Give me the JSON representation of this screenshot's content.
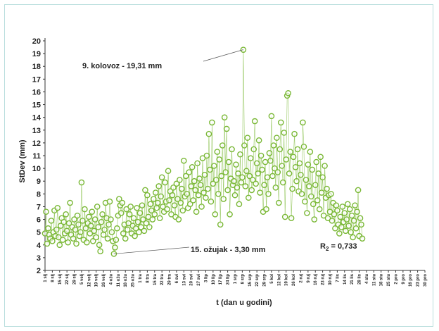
{
  "chart_data": {
    "type": "scatter",
    "title": "",
    "ylabel": "StDev (mm)",
    "xlabel": "t (dan u godini)",
    "ylim": [
      2,
      20
    ],
    "yticks": [
      2,
      3,
      4,
      5,
      6,
      7,
      8,
      9,
      10,
      11,
      12,
      13,
      14,
      15,
      16,
      17,
      18,
      19,
      20
    ],
    "xlim": [
      1,
      365
    ],
    "xtick_labels": [
      "1 sij",
      "8 sij",
      "15 sij",
      "22 sij",
      "29 sij",
      "5 velj",
      "12 velj",
      "19 velj",
      "26 velj",
      "4 ožu",
      "11 ožu",
      "18 ožu",
      "25 ožu",
      "1 tra",
      "8 tra",
      "15 tra",
      "22 tra",
      "29 tra",
      "6 svi",
      "13 svi",
      "20 svi",
      "27 svi",
      "3 lip",
      "10 lip",
      "17 lip",
      "24 lip",
      "1 srp",
      "8 srp",
      "15 srp",
      "22 srp",
      "29 srp",
      "5 kol",
      "12 kol",
      "19 kol",
      "26 kol",
      "2 ruj",
      "9 ruj",
      "16 ruj",
      "23 ruj",
      "30 ruj",
      "7 lis",
      "14 lis",
      "21 lis",
      "28 lis",
      "4 stu",
      "11 stu",
      "18 stu",
      "25 stu",
      "2 pro",
      "9 pro",
      "16 pro",
      "23 pro",
      "30 pro"
    ],
    "series": [
      {
        "marker_color": "#7ab836",
        "points": [
          [
            1,
            4.9
          ],
          [
            2,
            6.6
          ],
          [
            3,
            4.1
          ],
          [
            4,
            5.3
          ],
          [
            5,
            4.8
          ],
          [
            6,
            4.5
          ],
          [
            7,
            5.9
          ],
          [
            8,
            4.3
          ],
          [
            9,
            5.0
          ],
          [
            10,
            6.7
          ],
          [
            11,
            4.7
          ],
          [
            12,
            5.2
          ],
          [
            13,
            6.9
          ],
          [
            14,
            4.6
          ],
          [
            15,
            4.0
          ],
          [
            16,
            5.5
          ],
          [
            17,
            6.1
          ],
          [
            18,
            4.4
          ],
          [
            19,
            5.8
          ],
          [
            20,
            4.9
          ],
          [
            21,
            6.4
          ],
          [
            22,
            5.1
          ],
          [
            23,
            4.2
          ],
          [
            24,
            5.7
          ],
          [
            25,
            7.3
          ],
          [
            26,
            4.8
          ],
          [
            27,
            5.4
          ],
          [
            28,
            4.5
          ],
          [
            29,
            6.0
          ],
          [
            30,
            5.2
          ],
          [
            31,
            4.1
          ],
          [
            32,
            6.3
          ],
          [
            33,
            5.6
          ],
          [
            34,
            4.7
          ],
          [
            35,
            5.0
          ],
          [
            36,
            8.9
          ],
          [
            37,
            5.9
          ],
          [
            38,
            4.4
          ],
          [
            39,
            6.8
          ],
          [
            40,
            5.3
          ],
          [
            41,
            4.2
          ],
          [
            42,
            5.7
          ],
          [
            43,
            6.2
          ],
          [
            44,
            4.9
          ],
          [
            45,
            5.5
          ],
          [
            46,
            6.6
          ],
          [
            47,
            4.3
          ],
          [
            48,
            5.1
          ],
          [
            49,
            6.0
          ],
          [
            50,
            4.6
          ],
          [
            51,
            7.0
          ],
          [
            52,
            5.4
          ],
          [
            53,
            4.0
          ],
          [
            54,
            3.5
          ],
          [
            55,
            5.8
          ],
          [
            56,
            6.4
          ],
          [
            57,
            4.8
          ],
          [
            58,
            5.2
          ],
          [
            59,
            7.3
          ],
          [
            60,
            6.1
          ],
          [
            61,
            4.5
          ],
          [
            62,
            5.6
          ],
          [
            63,
            7.4
          ],
          [
            64,
            6.0
          ],
          [
            65,
            5.0
          ],
          [
            66,
            4.3
          ],
          [
            67,
            3.3
          ],
          [
            68,
            3.8
          ],
          [
            69,
            4.4
          ],
          [
            70,
            5.3
          ],
          [
            71,
            6.3
          ],
          [
            72,
            7.6
          ],
          [
            73,
            7.1
          ],
          [
            74,
            6.5
          ],
          [
            75,
            7.3
          ],
          [
            76,
            4.9
          ],
          [
            77,
            5.6
          ],
          [
            78,
            4.5
          ],
          [
            79,
            6.8
          ],
          [
            80,
            5.2
          ],
          [
            81,
            5.7
          ],
          [
            82,
            6.4
          ],
          [
            83,
            7.0
          ],
          [
            84,
            4.9
          ],
          [
            85,
            5.5
          ],
          [
            86,
            6.1
          ],
          [
            87,
            4.7
          ],
          [
            88,
            5.3
          ],
          [
            89,
            6.9
          ],
          [
            90,
            5.8
          ],
          [
            91,
            5.0
          ],
          [
            92,
            6.5
          ],
          [
            93,
            5.4
          ],
          [
            94,
            7.1
          ],
          [
            95,
            6.0
          ],
          [
            96,
            5.1
          ],
          [
            97,
            8.3
          ],
          [
            98,
            5.7
          ],
          [
            99,
            7.9
          ],
          [
            100,
            6.2
          ],
          [
            101,
            5.4
          ],
          [
            102,
            7.2
          ],
          [
            103,
            6.7
          ],
          [
            104,
            6.0
          ],
          [
            105,
            7.6
          ],
          [
            106,
            6.4
          ],
          [
            107,
            8.1
          ],
          [
            108,
            6.9
          ],
          [
            109,
            7.3
          ],
          [
            110,
            8.6
          ],
          [
            111,
            6.1
          ],
          [
            112,
            7.8
          ],
          [
            113,
            9.3
          ],
          [
            114,
            7.0
          ],
          [
            115,
            6.6
          ],
          [
            116,
            8.9
          ],
          [
            117,
            7.4
          ],
          [
            118,
            6.8
          ],
          [
            119,
            9.8
          ],
          [
            120,
            7.5
          ],
          [
            121,
            8.2
          ],
          [
            122,
            6.4
          ],
          [
            123,
            7.9
          ],
          [
            124,
            8.5
          ],
          [
            125,
            7.1
          ],
          [
            126,
            6.2
          ],
          [
            127,
            8.8
          ],
          [
            128,
            7.6
          ],
          [
            129,
            6.0
          ],
          [
            130,
            9.1
          ],
          [
            131,
            7.3
          ],
          [
            132,
            8.4
          ],
          [
            133,
            6.7
          ],
          [
            134,
            10.6
          ],
          [
            135,
            7.8
          ],
          [
            136,
            9.4
          ],
          [
            137,
            8.0
          ],
          [
            138,
            6.9
          ],
          [
            139,
            9.7
          ],
          [
            140,
            7.2
          ],
          [
            141,
            8.6
          ],
          [
            142,
            10.1
          ],
          [
            143,
            7.5
          ],
          [
            144,
            9.0
          ],
          [
            145,
            8.3
          ],
          [
            146,
            6.6
          ],
          [
            147,
            10.4
          ],
          [
            148,
            7.9
          ],
          [
            149,
            9.2
          ],
          [
            150,
            8.7
          ],
          [
            151,
            7.0
          ],
          [
            152,
            10.8
          ],
          [
            153,
            8.1
          ],
          [
            154,
            9.5
          ],
          [
            155,
            7.7
          ],
          [
            156,
            11.0
          ],
          [
            157,
            8.4
          ],
          [
            158,
            12.7
          ],
          [
            159,
            9.9
          ],
          [
            160,
            7.4
          ],
          [
            161,
            13.6
          ],
          [
            162,
            8.8
          ],
          [
            163,
            10.2
          ],
          [
            164,
            6.4
          ],
          [
            165,
            9.1
          ],
          [
            166,
            11.3
          ],
          [
            167,
            8.0
          ],
          [
            168,
            10.7
          ],
          [
            169,
            5.6
          ],
          [
            170,
            9.4
          ],
          [
            171,
            11.8
          ],
          [
            172,
            7.6
          ],
          [
            173,
            14.0
          ],
          [
            174,
            9.7
          ],
          [
            175,
            13.1
          ],
          [
            176,
            8.3
          ],
          [
            177,
            10.5
          ],
          [
            178,
            6.4
          ],
          [
            179,
            9.2
          ],
          [
            180,
            11.5
          ],
          [
            181,
            8.7
          ],
          [
            182,
            9.0
          ],
          [
            183,
            7.9
          ],
          [
            184,
            10.3
          ],
          [
            185,
            8.5
          ],
          [
            186,
            9.6
          ],
          [
            187,
            7.2
          ],
          [
            188,
            11.1
          ],
          [
            189,
            8.9
          ],
          [
            190,
            9.3
          ],
          [
            191,
            19.3
          ],
          [
            192,
            11.8
          ],
          [
            193,
            8.6
          ],
          [
            194,
            9.8
          ],
          [
            195,
            12.4
          ],
          [
            196,
            7.7
          ],
          [
            197,
            9.4
          ],
          [
            198,
            10.8
          ],
          [
            199,
            8.3
          ],
          [
            200,
            9.1
          ],
          [
            201,
            11.5
          ],
          [
            202,
            13.7
          ],
          [
            203,
            8.8
          ],
          [
            204,
            10.4
          ],
          [
            205,
            9.6
          ],
          [
            206,
            12.2
          ],
          [
            207,
            8.1
          ],
          [
            208,
            11.0
          ],
          [
            209,
            9.9
          ],
          [
            210,
            6.6
          ],
          [
            211,
            8.7
          ],
          [
            212,
            10.5
          ],
          [
            213,
            6.8
          ],
          [
            214,
            9.3
          ],
          [
            215,
            8.0
          ],
          [
            216,
            11.2
          ],
          [
            217,
            10.6
          ],
          [
            218,
            14.1
          ],
          [
            219,
            9.4
          ],
          [
            220,
            11.8
          ],
          [
            221,
            10.0
          ],
          [
            222,
            8.5
          ],
          [
            223,
            12.4
          ],
          [
            224,
            9.7
          ],
          [
            225,
            7.3
          ],
          [
            226,
            11.5
          ],
          [
            227,
            13.6
          ],
          [
            228,
            10.2
          ],
          [
            229,
            8.9
          ],
          [
            230,
            12.8
          ],
          [
            231,
            6.2
          ],
          [
            232,
            10.7
          ],
          [
            233,
            15.7
          ],
          [
            234,
            15.9
          ],
          [
            235,
            9.6
          ],
          [
            236,
            11.3
          ],
          [
            237,
            6.1
          ],
          [
            238,
            8.4
          ],
          [
            239,
            10.9
          ],
          [
            240,
            12.7
          ],
          [
            241,
            10.1
          ],
          [
            242,
            9.0
          ],
          [
            243,
            11.5
          ],
          [
            244,
            8.2
          ],
          [
            245,
            10.4
          ],
          [
            246,
            9.5
          ],
          [
            247,
            8.0
          ],
          [
            248,
            13.6
          ],
          [
            249,
            11.7
          ],
          [
            250,
            7.4
          ],
          [
            251,
            9.1
          ],
          [
            252,
            6.5
          ],
          [
            253,
            10.3
          ],
          [
            254,
            8.6
          ],
          [
            255,
            11.3
          ],
          [
            256,
            7.8
          ],
          [
            257,
            9.9
          ],
          [
            258,
            7.2
          ],
          [
            259,
            6.0
          ],
          [
            260,
            8.7
          ],
          [
            261,
            10.5
          ],
          [
            262,
            7.5
          ],
          [
            263,
            9.6
          ],
          [
            264,
            6.8
          ],
          [
            265,
            10.9
          ],
          [
            266,
            8.1
          ],
          [
            267,
            9.3
          ],
          [
            268,
            6.3
          ],
          [
            269,
            10.2
          ],
          [
            270,
            7.7
          ],
          [
            271,
            8.4
          ],
          [
            272,
            6.1
          ],
          [
            273,
            7.9
          ],
          [
            274,
            6.6
          ],
          [
            275,
            8.0
          ],
          [
            276,
            5.9
          ],
          [
            277,
            7.3
          ],
          [
            278,
            6.4
          ],
          [
            279,
            5.3
          ],
          [
            280,
            7.1
          ],
          [
            281,
            6.7
          ],
          [
            282,
            5.6
          ],
          [
            283,
            4.9
          ],
          [
            284,
            6.2
          ],
          [
            285,
            5.4
          ],
          [
            286,
            7.0
          ],
          [
            287,
            5.8
          ],
          [
            288,
            6.5
          ],
          [
            289,
            5.1
          ],
          [
            290,
            6.0
          ],
          [
            291,
            7.2
          ],
          [
            292,
            5.5
          ],
          [
            293,
            6.8
          ],
          [
            294,
            5.0
          ],
          [
            295,
            6.3
          ],
          [
            296,
            4.6
          ],
          [
            297,
            5.9
          ],
          [
            298,
            7.1
          ],
          [
            299,
            5.3
          ],
          [
            300,
            6.6
          ],
          [
            301,
            8.3
          ],
          [
            302,
            4.7
          ],
          [
            303,
            6.1
          ],
          [
            304,
            5.6
          ],
          [
            305,
            4.5
          ]
        ]
      }
    ],
    "annotations": [
      {
        "text": "9. kolovoz - 19,31 mm",
        "x": 191,
        "y": 19.31
      },
      {
        "text": "15. ožujak - 3,30 mm",
        "x": 67,
        "y": 3.3
      }
    ],
    "r_squared_label": "R",
    "r_squared_sub": "2",
    "r_squared_value": " = 0,733",
    "grid": false,
    "legend": "none"
  }
}
